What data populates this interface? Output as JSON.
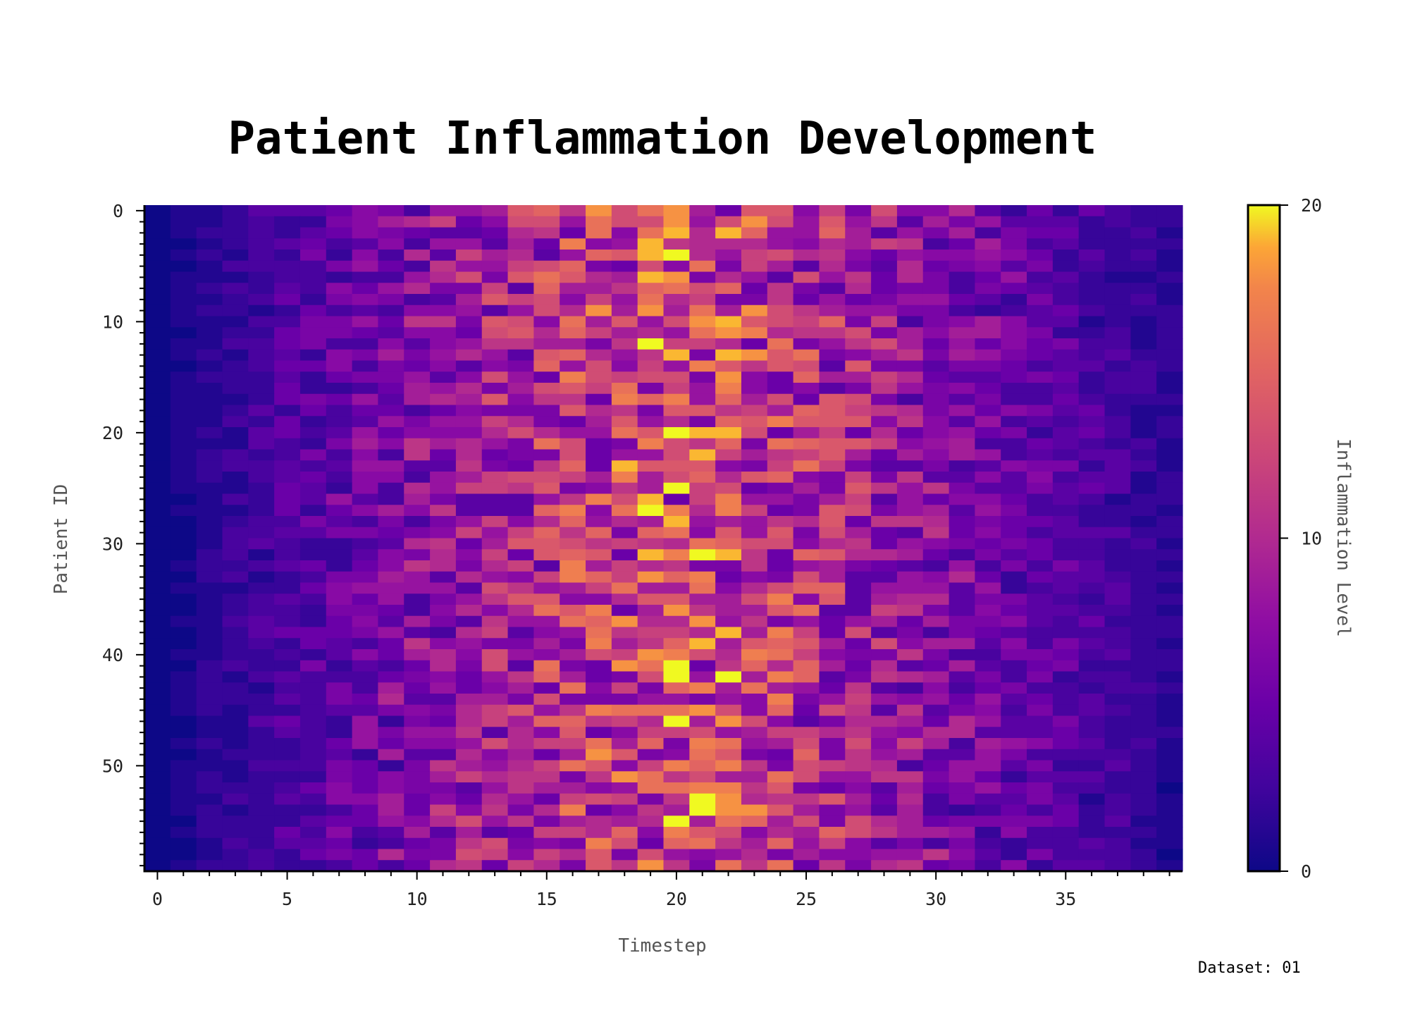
{
  "chart_data": {
    "type": "heatmap",
    "title": "Patient Inflammation Development",
    "xlabel": "Timestep",
    "ylabel": "Patient ID",
    "colorbar_label": "Inflammation Level",
    "colormap": "plasma",
    "vmin": 0,
    "vmax": 20,
    "rows": 60,
    "cols": 40,
    "x_ticks": [
      "0",
      "5",
      "10",
      "15",
      "20",
      "25",
      "30",
      "35"
    ],
    "y_ticks": [
      "0",
      "10",
      "20",
      "30",
      "40",
      "50"
    ],
    "colorbar_ticks": [
      "0",
      "10",
      "20"
    ],
    "grid": false,
    "values_description_cols": [
      0,
      0.5,
      1,
      1.5,
      2,
      2.5,
      3,
      3.5,
      4,
      4.5,
      5,
      5.5,
      6,
      6.5,
      7,
      7.5,
      8,
      8.5,
      9,
      9.5,
      10,
      9.5,
      9,
      8.5,
      8,
      7.5,
      7,
      6.5,
      6,
      5.5,
      5,
      4.5,
      4,
      3.5,
      3,
      2.5,
      2,
      1.5,
      1,
      0.5
    ],
    "seed": 1
  },
  "footer": {
    "dataset_label": "Dataset: 01"
  }
}
